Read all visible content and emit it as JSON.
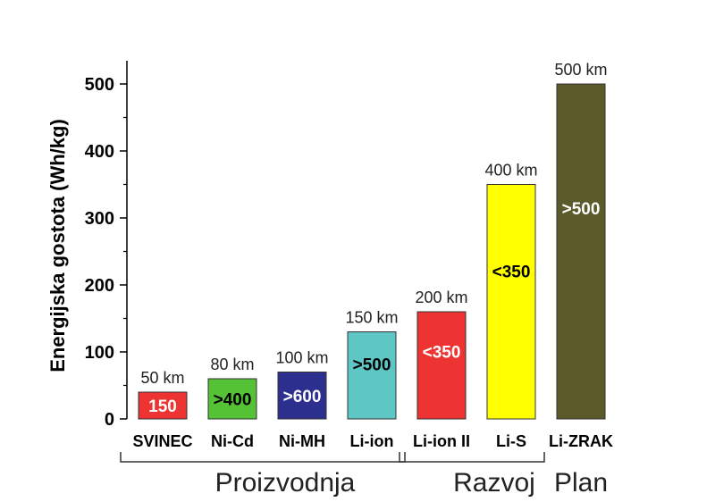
{
  "chart_data": {
    "type": "bar",
    "ylabel": "Energijska gostota (Wh/kg)",
    "ylim": [
      0,
      540
    ],
    "yticks": [
      0,
      100,
      200,
      300,
      400,
      500
    ],
    "categories": [
      "SVINEC",
      "Ni-Cd",
      "Ni-MH",
      "Li-ion",
      "Li-ion II",
      "Li-S",
      "Li-ZRAK"
    ],
    "values": [
      40,
      60,
      70,
      130,
      160,
      350,
      500
    ],
    "range_labels": [
      "50 km",
      "80 km",
      "100 km",
      "150 km",
      "200 km",
      "400 km",
      "500 km"
    ],
    "inner_labels": [
      "150",
      ">400",
      ">600",
      ">500",
      "<350",
      "<350",
      ">500"
    ],
    "colors": [
      "#ee3333",
      "#55c236",
      "#2d2f8f",
      "#5ec7c5",
      "#ee3333",
      "#ffff00",
      "#5a5a2b"
    ],
    "inner_label_colors": [
      "#ffffff",
      "#000000",
      "#ffffff",
      "#000000",
      "#ffffff",
      "#000000",
      "#ffffff"
    ],
    "groups": [
      {
        "label": "Proizvodnja",
        "from": 0,
        "to": 3
      },
      {
        "label": "Razvoj",
        "from": 4,
        "to": 5
      },
      {
        "label": "Plan",
        "from": 6,
        "to": 6
      }
    ]
  }
}
